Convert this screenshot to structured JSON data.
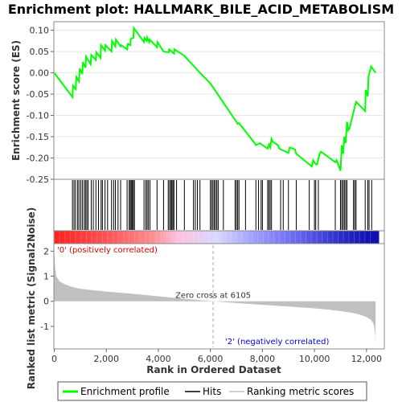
{
  "chart_data": {
    "type": "line",
    "title": "Enrichment plot: HALLMARK_BILE_ACID_METABOLISM",
    "xlabel": "Rank in Ordered Dataset",
    "xlim": [
      0,
      12500
    ],
    "x_ticks": [
      0,
      2000,
      4000,
      6000,
      8000,
      10000,
      12000
    ],
    "x_tick_labels": [
      "0",
      "2,000",
      "4,000",
      "6,000",
      "8,000",
      "10,000",
      "12,000"
    ],
    "es_panel": {
      "ylabel": "Enrichment score (ES)",
      "ylim": [
        -0.25,
        0.12
      ],
      "y_ticks": [
        0.1,
        0.05,
        0.0,
        -0.05,
        -0.1,
        -0.15,
        -0.2,
        -0.25
      ],
      "y_tick_labels": [
        "0.10",
        "0.05",
        "0.00",
        "-0.05",
        "-0.10",
        "-0.15",
        "-0.20",
        "-0.25"
      ],
      "series": [
        {
          "name": "Enrichment profile",
          "color": "#00ff00",
          "x": [
            0,
            700,
            720,
            820,
            850,
            950,
            980,
            1080,
            1100,
            1200,
            1220,
            1400,
            1420,
            1600,
            1620,
            1780,
            1800,
            1950,
            1970,
            2200,
            2220,
            2350,
            2370,
            2550,
            2570,
            2800,
            2820,
            2920,
            2940,
            3040,
            3060,
            3450,
            3470,
            3550,
            3570,
            3650,
            3670,
            3950,
            3970,
            4200,
            4400,
            4420,
            4600,
            4620,
            5000,
            5600,
            6000,
            6500,
            7000,
            7050,
            7100,
            7700,
            7750,
            7900,
            8200,
            8250,
            8300,
            8350,
            8400,
            8600,
            8650,
            9000,
            9050,
            9250,
            9300,
            9900,
            9950,
            10050,
            10100,
            10200,
            10250,
            10800,
            10850,
            11000,
            11050,
            11100,
            11150,
            11200,
            11250,
            11300,
            11350,
            11550,
            11600,
            11950,
            11970,
            12050,
            12080,
            12180,
            12350
          ],
          "y": [
            0.0,
            -0.057,
            -0.03,
            -0.038,
            -0.01,
            -0.02,
            0.01,
            -0.003,
            0.025,
            0.012,
            0.038,
            0.02,
            0.042,
            0.03,
            0.048,
            0.035,
            0.065,
            0.052,
            0.065,
            0.05,
            0.075,
            0.062,
            0.078,
            0.062,
            0.065,
            0.055,
            0.068,
            0.065,
            0.08,
            0.082,
            0.105,
            0.072,
            0.082,
            0.075,
            0.083,
            0.072,
            0.078,
            0.06,
            0.072,
            0.05,
            0.048,
            0.055,
            0.045,
            0.055,
            0.04,
            0.0,
            -0.025,
            -0.07,
            -0.115,
            -0.12,
            -0.118,
            -0.165,
            -0.17,
            -0.165,
            -0.178,
            -0.168,
            -0.175,
            -0.155,
            -0.162,
            -0.17,
            -0.178,
            -0.188,
            -0.175,
            -0.18,
            -0.19,
            -0.22,
            -0.205,
            -0.215,
            -0.215,
            -0.19,
            -0.185,
            -0.21,
            -0.205,
            -0.23,
            -0.17,
            -0.19,
            -0.15,
            -0.165,
            -0.115,
            -0.135,
            -0.13,
            -0.08,
            -0.068,
            -0.09,
            -0.04,
            -0.055,
            -0.008,
            0.015,
            0.0
          ]
        }
      ]
    },
    "hits": {
      "name": "Hits",
      "positions": [
        700,
        760,
        820,
        900,
        950,
        1020,
        1080,
        1150,
        1200,
        1250,
        1300,
        1420,
        1500,
        1600,
        1700,
        1800,
        1850,
        1950,
        2050,
        2200,
        2280,
        2350,
        2450,
        2550,
        2800,
        2880,
        2920,
        2960,
        3000,
        3040,
        3080,
        3450,
        3520,
        3570,
        3620,
        3680,
        3950,
        4200,
        4380,
        4430,
        4480,
        4520,
        4560,
        4600,
        4700,
        5000,
        5350,
        5420,
        5500,
        5600,
        6000,
        6050,
        6100,
        6150,
        6200,
        6250,
        6300,
        6500,
        6950,
        7000,
        7050,
        7100,
        7350,
        7750,
        7850,
        7950,
        8000,
        8200,
        8250,
        8300,
        8350,
        8700,
        8800,
        9000,
        9300,
        9800,
        10000,
        10050,
        10150,
        10800,
        11000,
        11050,
        11100,
        11150,
        11200,
        11250,
        11500,
        11550,
        11600,
        11950,
        12050,
        12100,
        12200
      ]
    },
    "heat_bar": {
      "colors": [
        "#ff2020",
        "#ff5a5a",
        "#ff8c8c",
        "#ffc0e0",
        "#d8d8ff",
        "#9c9cff",
        "#6666ee",
        "#3030cc",
        "#1010b0"
      ],
      "stops": [
        0.0,
        0.18,
        0.3,
        0.38,
        0.5,
        0.62,
        0.75,
        0.87,
        0.97
      ]
    },
    "metric_panel": {
      "ylabel": "Ranked list metric (Signal2Noise)",
      "ylim": [
        -1.9,
        2.3
      ],
      "y_ticks": [
        2,
        1,
        0,
        -1
      ],
      "y_tick_labels": [
        "2",
        "1",
        "0",
        "-1"
      ],
      "series": [
        {
          "name": "Ranking metric scores",
          "color": "#c0c0c0",
          "x": [
            0,
            30,
            80,
            200,
            400,
            700,
            1000,
            1500,
            2000,
            3000,
            4000,
            5000,
            6105,
            7000,
            8000,
            9000,
            10000,
            10500,
            11000,
            11500,
            11800,
            12000,
            12150,
            12250,
            12300,
            12340,
            12350
          ],
          "y": [
            2.0,
            1.35,
            1.0,
            0.8,
            0.68,
            0.57,
            0.5,
            0.44,
            0.39,
            0.3,
            0.2,
            0.1,
            0.0,
            -0.07,
            -0.14,
            -0.21,
            -0.28,
            -0.33,
            -0.39,
            -0.47,
            -0.55,
            -0.63,
            -0.72,
            -0.85,
            -1.0,
            -1.4,
            -1.7
          ]
        }
      ],
      "zero_cross_label": "Zero cross at 6105",
      "zero_cross": 6105,
      "pos_label": "'0' (positively correlated)",
      "neg_label": "'2' (negatively correlated)",
      "pos_color": "#dd0000",
      "neg_color": "#0000dd"
    },
    "legend": {
      "placement": "bottom",
      "items": [
        {
          "label": "Enrichment profile",
          "color": "#00ff00"
        },
        {
          "label": "Hits",
          "color": "#000000"
        },
        {
          "label": "Ranking metric scores",
          "color": "#c0c0c0"
        }
      ]
    }
  }
}
